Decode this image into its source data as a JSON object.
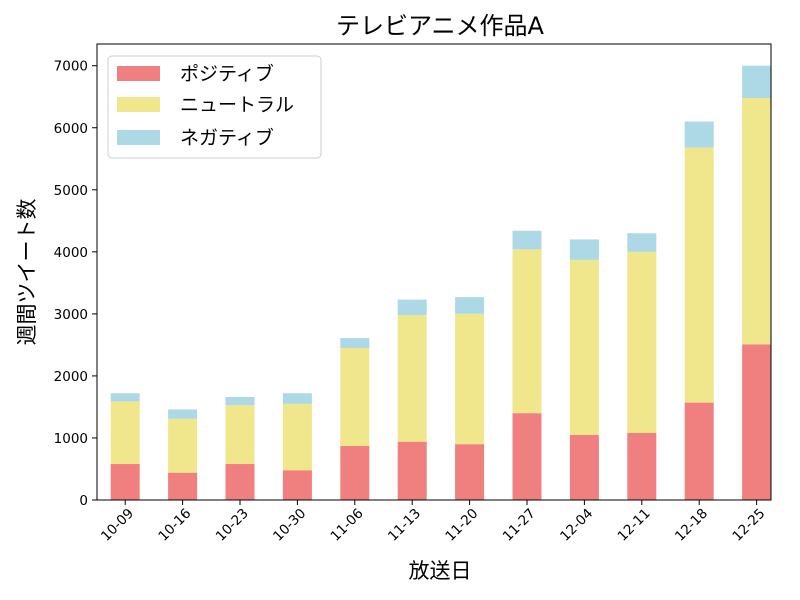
{
  "chart_data": {
    "type": "bar",
    "stacked": true,
    "title": "テレビアニメ作品A",
    "xlabel": "放送日",
    "ylabel": "週間ツイート数",
    "ylim": [
      0,
      7350
    ],
    "yticks": [
      "0",
      "1000",
      "2000",
      "3000",
      "4000",
      "5000",
      "6000",
      "7000"
    ],
    "categories": [
      "10-09",
      "10-16",
      "10-23",
      "10-30",
      "11-06",
      "11-13",
      "11-20",
      "11-27",
      "12-04",
      "12-11",
      "12-18",
      "12-25"
    ],
    "legend_position": "top-left",
    "grid": false,
    "series": [
      {
        "name": "ポジティブ",
        "color": "#f08080",
        "values": [
          580,
          440,
          580,
          480,
          870,
          940,
          900,
          1400,
          1050,
          1080,
          1570,
          2510
        ]
      },
      {
        "name": "ニュートラル",
        "color": "#f0e68c",
        "values": [
          1010,
          870,
          950,
          1070,
          1580,
          2040,
          2100,
          2640,
          2820,
          2920,
          4110,
          3970
        ]
      },
      {
        "name": "ネガティブ",
        "color": "#add8e6",
        "values": [
          130,
          150,
          130,
          170,
          160,
          250,
          270,
          300,
          330,
          300,
          420,
          520
        ]
      }
    ]
  }
}
